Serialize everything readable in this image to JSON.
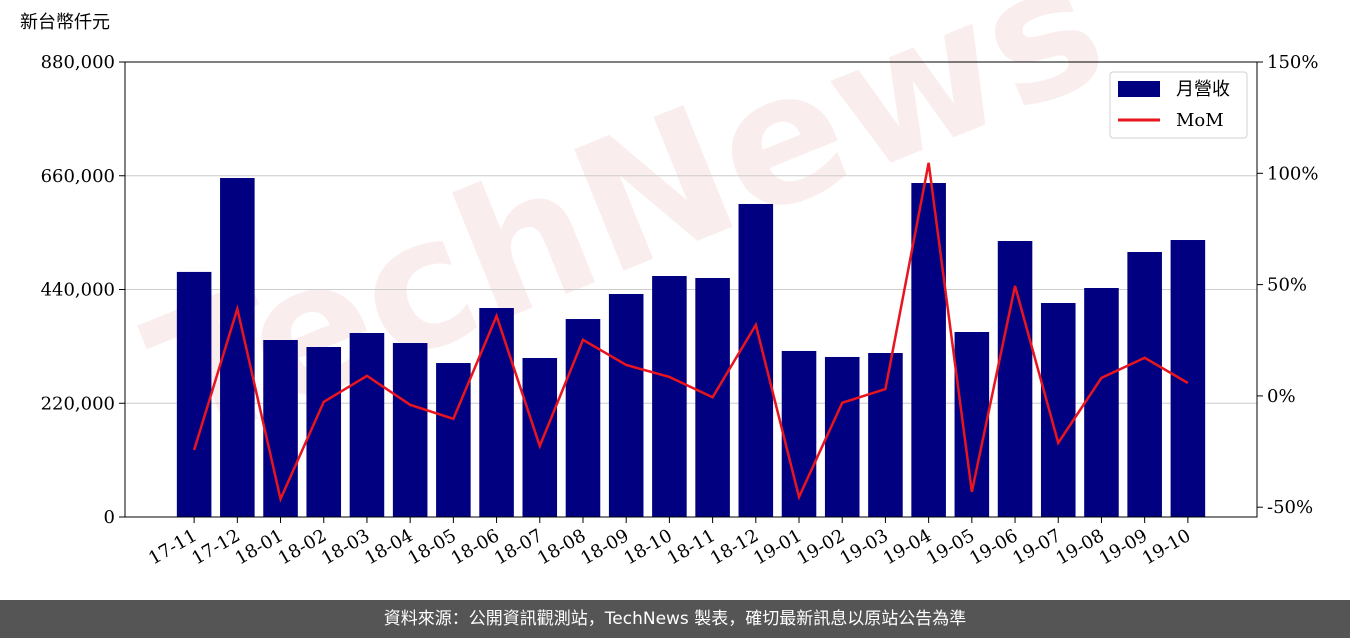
{
  "chart_data": {
    "type": "bar-line",
    "y_label": "新台幣仟元",
    "watermark": "TechNews",
    "categories": [
      "17-11",
      "17-12",
      "18-01",
      "18-02",
      "18-03",
      "18-04",
      "18-05",
      "18-06",
      "18-07",
      "18-08",
      "18-09",
      "18-10",
      "18-11",
      "18-12",
      "19-01",
      "19-02",
      "19-03",
      "19-04",
      "19-05",
      "19-06",
      "19-07",
      "19-08",
      "19-09",
      "19-10"
    ],
    "series": [
      {
        "name": "月營收",
        "type": "bar",
        "color": "#000080",
        "values": [
          474000,
          655600,
          342300,
          328800,
          355900,
          336500,
          297800,
          404200,
          307500,
          382900,
          431300,
          466100,
          462200,
          605400,
          321100,
          309500,
          317200,
          646000,
          357800,
          533800,
          413900,
          442900,
          512500,
          535700
        ]
      },
      {
        "name": "MoM",
        "type": "line",
        "axis": "y2",
        "color": "#e8141e",
        "values": [
          -24.3,
          39.1,
          -46.3,
          -2.7,
          9.0,
          -4.0,
          -10.3,
          35.9,
          -22.5,
          25.2,
          13.9,
          8.5,
          -0.6,
          31.9,
          -45.4,
          -3.1,
          3.1,
          104.7,
          -43.1,
          49.4,
          -21.1,
          8.1,
          17.1,
          5.8
        ]
      }
    ],
    "ylim": [
      0,
      880000
    ],
    "yticks": [
      {
        "value": 0,
        "label": "0"
      },
      {
        "value": 220000,
        "label": "220,000"
      },
      {
        "value": 440000,
        "label": "440,000"
      },
      {
        "value": 660000,
        "label": "660,000"
      },
      {
        "value": 880000,
        "label": "880,000"
      }
    ],
    "y2lim": [
      -54.4,
      150
    ],
    "y2ticks": [
      {
        "value": -50,
        "label": "-50%"
      },
      {
        "value": 0,
        "label": "0%"
      },
      {
        "value": 50,
        "label": "50%"
      },
      {
        "value": 100,
        "label": "100%"
      },
      {
        "value": 150,
        "label": "150%"
      }
    ],
    "grid": true,
    "legend": "upper right",
    "footer": "資料來源：公開資訊觀測站，TechNews 製表，確切最新訊息以原站公告為準"
  }
}
